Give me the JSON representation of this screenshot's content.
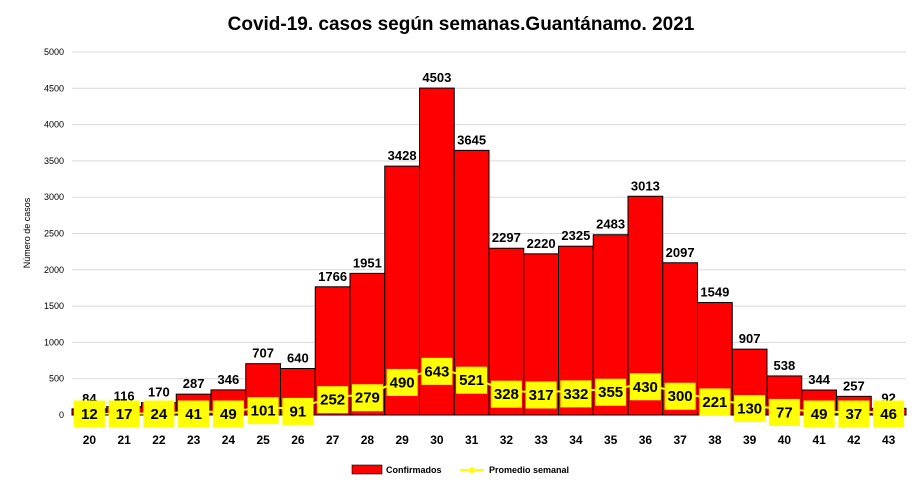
{
  "chart_data": {
    "type": "bar",
    "title": "Covid-19. casos según semanas.Guantánamo. 2021",
    "xlabel": "",
    "ylabel": "Número de casos",
    "ylim": [
      0,
      5000
    ],
    "yticks": [
      0,
      500,
      1000,
      1500,
      2000,
      2500,
      3000,
      3500,
      4000,
      4500,
      5000
    ],
    "grid": true,
    "legend_position": "bottom",
    "categories": [
      "20",
      "21",
      "22",
      "23",
      "24",
      "25",
      "26",
      "27",
      "28",
      "29",
      "30",
      "31",
      "32",
      "33",
      "34",
      "35",
      "36",
      "37",
      "38",
      "39",
      "40",
      "41",
      "42",
      "43"
    ],
    "series": [
      {
        "name": "Confirmados",
        "kind": "bar",
        "color": "#ff0000",
        "values": [
          84,
          116,
          170,
          287,
          346,
          707,
          640,
          1766,
          1951,
          3428,
          4503,
          3645,
          2297,
          2220,
          2325,
          2483,
          3013,
          2097,
          1549,
          907,
          538,
          344,
          257,
          92
        ]
      },
      {
        "name": "Promedio semanal",
        "kind": "line",
        "color": "#ffff00",
        "values": [
          12,
          17,
          24,
          41,
          49,
          101,
          91,
          252,
          279,
          490,
          643,
          521,
          328,
          317,
          332,
          355,
          430,
          300,
          221,
          130,
          77,
          49,
          37,
          46
        ]
      }
    ]
  }
}
